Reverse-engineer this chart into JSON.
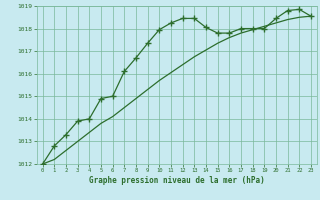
{
  "title": "Graphe pression niveau de la mer (hPa)",
  "bg_color": "#c8eaf0",
  "grid_color": "#7ab89a",
  "line_color": "#2d6e2d",
  "ylim": [
    1012,
    1019
  ],
  "yticks": [
    1012,
    1013,
    1014,
    1015,
    1016,
    1017,
    1018,
    1019
  ],
  "marker_line": [
    1012.0,
    1012.8,
    1013.3,
    1013.9,
    1014.0,
    1014.9,
    1015.0,
    1016.1,
    1016.7,
    1017.35,
    1017.95,
    1018.25,
    1018.45,
    1018.45,
    1018.05,
    1017.8,
    1017.8,
    1018.0,
    1018.0,
    1018.0,
    1018.45,
    1018.8,
    1018.85,
    1018.55
  ],
  "smooth_line": [
    1012.0,
    1012.2,
    1012.6,
    1013.0,
    1013.4,
    1013.8,
    1014.1,
    1014.5,
    1014.9,
    1015.3,
    1015.7,
    1016.05,
    1016.4,
    1016.75,
    1017.05,
    1017.35,
    1017.6,
    1017.8,
    1017.95,
    1018.1,
    1018.25,
    1018.4,
    1018.5,
    1018.55
  ]
}
